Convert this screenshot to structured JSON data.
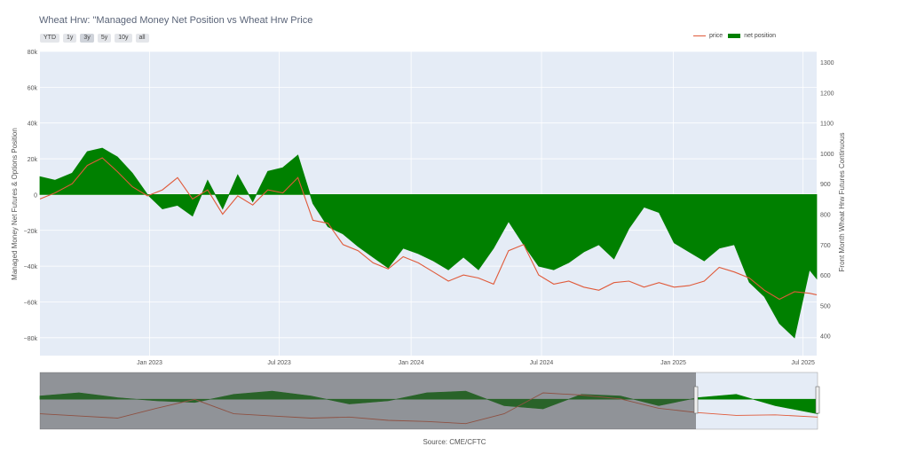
{
  "title": "Wheat Hrw: \"Managed Money Net Position vs Wheat Hrw Price",
  "range_buttons": [
    "YTD",
    "1y",
    "3y",
    "5y",
    "10y",
    "all"
  ],
  "active_range": "3y",
  "legend": {
    "price": "price",
    "net_position": "net position"
  },
  "source": "Source: CME/CFTC",
  "colors": {
    "price": "#e05a3a",
    "net_position": "#008000",
    "plot_bg": "#e5ecf6",
    "grid": "#ffffff"
  },
  "chart_data": {
    "type": "area",
    "title": "Wheat Hrw: \"Managed Money Net Position vs Wheat Hrw Price",
    "ylabel": "Managed Money Net Futures & Options Position",
    "y2label": "Front Month Wheat Hrw Futures Continuous",
    "ylim": [
      -90000,
      80000
    ],
    "y2lim": [
      335,
      1335
    ],
    "y_ticks": [
      "80k",
      "60k",
      "40k",
      "20k",
      "0",
      "−20k",
      "−40k",
      "−60k",
      "−80k"
    ],
    "y_tick_values": [
      80000,
      60000,
      40000,
      20000,
      0,
      -20000,
      -40000,
      -60000,
      -80000
    ],
    "y2_ticks": [
      "1300",
      "1200",
      "1100",
      "1000",
      "900",
      "800",
      "700",
      "600",
      "500",
      "400"
    ],
    "y2_tick_values": [
      1300,
      1200,
      1100,
      1000,
      900,
      800,
      700,
      600,
      500,
      400
    ],
    "x_ticks": [
      "Jan 2023",
      "Jul 2023",
      "Jan 2024",
      "Jul 2024",
      "Jan 2025",
      "Jul 2025"
    ],
    "x_tick_values": [
      "2023-01-01",
      "2023-07-01",
      "2024-01-01",
      "2024-07-01",
      "2025-01-01",
      "2025-07-01"
    ],
    "xlim": [
      "2022-08-01",
      "2025-07-20"
    ],
    "grid": true,
    "legend_position": "top-right",
    "series": [
      {
        "name": "net position",
        "type": "area",
        "x": [
          "2022-08-01",
          "2022-08-22",
          "2022-09-15",
          "2022-10-06",
          "2022-10-27",
          "2022-11-17",
          "2022-12-08",
          "2022-12-29",
          "2023-01-19",
          "2023-02-09",
          "2023-03-02",
          "2023-03-23",
          "2023-04-13",
          "2023-05-04",
          "2023-05-25",
          "2023-06-15",
          "2023-07-06",
          "2023-07-27",
          "2023-08-17",
          "2023-09-07",
          "2023-09-28",
          "2023-10-19",
          "2023-11-09",
          "2023-11-30",
          "2023-12-21",
          "2024-01-11",
          "2024-02-01",
          "2024-02-22",
          "2024-03-14",
          "2024-04-04",
          "2024-04-25",
          "2024-05-16",
          "2024-06-06",
          "2024-06-27",
          "2024-07-18",
          "2024-08-08",
          "2024-08-29",
          "2024-09-19",
          "2024-10-10",
          "2024-10-31",
          "2024-11-21",
          "2024-12-12",
          "2025-01-02",
          "2025-01-23",
          "2025-02-13",
          "2025-03-06",
          "2025-03-27",
          "2025-04-17",
          "2025-05-08",
          "2025-05-29",
          "2025-06-19",
          "2025-07-10",
          "2025-07-20"
        ],
        "values": [
          10000,
          8000,
          12000,
          24000,
          26000,
          21000,
          12000,
          0,
          -8000,
          -6000,
          -12000,
          8000,
          -8000,
          11000,
          -4000,
          13000,
          15000,
          22000,
          -5000,
          -18000,
          -22000,
          -29000,
          -35000,
          -41000,
          -30000,
          -33000,
          -37000,
          -42000,
          -35000,
          -42000,
          -30000,
          -15000,
          -28000,
          -40000,
          -42000,
          -38000,
          -32000,
          -28000,
          -36000,
          -19000,
          -7000,
          -10000,
          -27000,
          -32000,
          -37000,
          -30000,
          -28000,
          -49000,
          -57000,
          -72000,
          -80000,
          -42000,
          -47000
        ]
      },
      {
        "name": "price",
        "type": "line",
        "x": [
          "2022-08-01",
          "2022-08-22",
          "2022-09-15",
          "2022-10-06",
          "2022-10-27",
          "2022-11-17",
          "2022-12-08",
          "2022-12-29",
          "2023-01-19",
          "2023-02-09",
          "2023-03-02",
          "2023-03-23",
          "2023-04-13",
          "2023-05-04",
          "2023-05-25",
          "2023-06-15",
          "2023-07-06",
          "2023-07-27",
          "2023-08-17",
          "2023-09-07",
          "2023-09-28",
          "2023-10-19",
          "2023-11-09",
          "2023-11-30",
          "2023-12-21",
          "2024-01-11",
          "2024-02-01",
          "2024-02-22",
          "2024-03-14",
          "2024-04-04",
          "2024-04-25",
          "2024-05-16",
          "2024-06-06",
          "2024-06-27",
          "2024-07-18",
          "2024-08-08",
          "2024-08-29",
          "2024-09-19",
          "2024-10-10",
          "2024-10-31",
          "2024-11-21",
          "2024-12-12",
          "2025-01-02",
          "2025-01-23",
          "2025-02-13",
          "2025-03-06",
          "2025-03-27",
          "2025-04-17",
          "2025-05-08",
          "2025-05-29",
          "2025-06-19",
          "2025-07-10",
          "2025-07-20"
        ],
        "values": [
          850,
          870,
          900,
          960,
          985,
          940,
          890,
          860,
          880,
          920,
          850,
          880,
          800,
          860,
          830,
          880,
          870,
          920,
          780,
          770,
          700,
          680,
          640,
          620,
          660,
          640,
          610,
          580,
          600,
          590,
          570,
          680,
          700,
          600,
          570,
          580,
          560,
          550,
          575,
          580,
          560,
          575,
          560,
          565,
          580,
          625,
          610,
          590,
          550,
          520,
          545,
          540,
          535
        ]
      }
    ]
  },
  "navigator": {
    "x": [
      "2015-07-01",
      "2016-01-01",
      "2016-07-01",
      "2017-01-01",
      "2017-07-01",
      "2018-01-01",
      "2018-07-01",
      "2019-01-01",
      "2019-07-01",
      "2020-01-01",
      "2020-07-01",
      "2021-01-01",
      "2021-07-01",
      "2022-01-01",
      "2022-07-01",
      "2023-01-01",
      "2023-07-01",
      "2024-01-01",
      "2024-07-01",
      "2025-01-01",
      "2025-07-20"
    ],
    "net_position": [
      10000,
      20000,
      5000,
      -5000,
      -10000,
      15000,
      25000,
      10000,
      -15000,
      -5000,
      20000,
      25000,
      -20000,
      -30000,
      15000,
      10000,
      -20000,
      5000,
      15000,
      -20000,
      -45000
    ],
    "price": [
      600,
      560,
      520,
      700,
      860,
      600,
      560,
      520,
      540,
      480,
      460,
      420,
      600,
      980,
      940,
      870,
      700,
      620,
      570,
      580,
      540
    ]
  }
}
